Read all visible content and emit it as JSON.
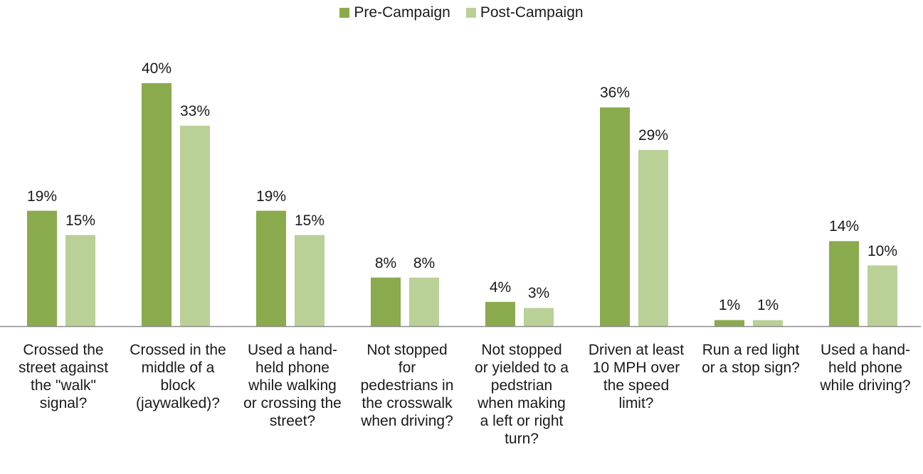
{
  "chart_data": {
    "type": "bar",
    "title": "",
    "xlabel": "",
    "ylabel": "",
    "ylim": [
      0,
      40
    ],
    "grid": false,
    "legend_position": "top-center",
    "categories": [
      "Crossed the street against the \"walk\" signal?",
      "Crossed in the middle of a block (jaywalked)?",
      "Used a hand-held phone while walking or crossing the street?",
      "Not stopped for pedestrians in the crosswalk when driving?",
      "Not stopped or yielded to a pedstrian when making a left or right turn?",
      "Driven at least 10 MPH over the speed limit?",
      "Run a red light or a stop sign?",
      "Used a hand-held phone while driving?"
    ],
    "category_lines": [
      [
        "Crossed the",
        "street against",
        "the \"walk\"",
        "signal?"
      ],
      [
        "Crossed in the",
        "middle of a",
        "block",
        "(jaywalked)?"
      ],
      [
        "Used a hand-",
        "held phone",
        "while walking",
        "or crossing the",
        "street?"
      ],
      [
        "Not stopped",
        "for",
        "pedestrians in",
        "the crosswalk",
        "when driving?"
      ],
      [
        "Not stopped",
        "or yielded to a",
        "pedstrian",
        "when making",
        "a left or right",
        "turn?"
      ],
      [
        "Driven at least",
        "10 MPH over",
        "the speed",
        "limit?"
      ],
      [
        "Run a red light",
        "or a stop sign?"
      ],
      [
        "Used a hand-",
        "held phone",
        "while driving?"
      ]
    ],
    "series": [
      {
        "name": "Pre-Campaign",
        "color": "#8aaa4e",
        "values": [
          19,
          40,
          19,
          8,
          4,
          36,
          1,
          14
        ],
        "labels": [
          "19%",
          "40%",
          "19%",
          "8%",
          "4%",
          "36%",
          "1%",
          "14%"
        ]
      },
      {
        "name": "Post-Campaign",
        "color": "#b9d097",
        "values": [
          15,
          33,
          15,
          8,
          3,
          29,
          1,
          10
        ],
        "labels": [
          "15%",
          "33%",
          "15%",
          "8%",
          "3%",
          "29%",
          "1%",
          "10%"
        ]
      }
    ]
  }
}
